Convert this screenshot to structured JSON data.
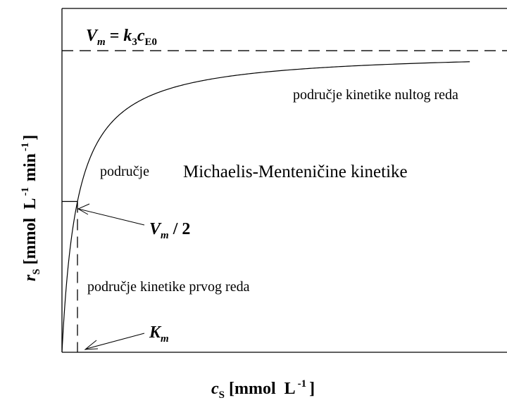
{
  "chart_data": {
    "type": "line",
    "title": "",
    "xlabel": {
      "var": "c",
      "sub": "S",
      "units_pre": "[mmol  L",
      "exp": "-1",
      "units_post": "]"
    },
    "ylabel": {
      "var": "r",
      "sub": "S",
      "units_pre": "[mmol  L",
      "exp1": "-1",
      "units_mid": "min",
      "exp2": "-1",
      "units_post": "]"
    },
    "model": "michaelis-menten",
    "Vm": 1.0,
    "Km": 1.0,
    "xlim": [
      0,
      28.7
    ],
    "ylim": [
      0,
      1.14
    ],
    "curve_x_max": 26.3,
    "ticks": "none",
    "grid": false,
    "reference_lines": [
      {
        "type": "horizontal",
        "y": 1.0,
        "style": "dashed",
        "label": "Vm"
      },
      {
        "type": "horizontal",
        "y": 0.5,
        "x_to": 1.0,
        "style": "solid",
        "label": "Vm/2"
      },
      {
        "type": "vertical",
        "x": 1.0,
        "style": "dashed",
        "label": "Km"
      }
    ],
    "annotations": {
      "vm_eq": {
        "lhs": "V",
        "lhs_sub": "m",
        "eq": " = ",
        "k": "k",
        "k_sub": "3",
        "c": "c",
        "c_sub": "E0"
      },
      "zero_order": "područje kinetike nultog reda",
      "mm_region_a": "područje",
      "mm_region_b": "Michaelis-Menteničine kinetike",
      "half_vm": {
        "v": "V",
        "v_sub": "m",
        "rest": " / 2"
      },
      "first_order": "područje kinetike prvog reda",
      "km": {
        "k": "K",
        "k_sub": "m"
      }
    }
  }
}
